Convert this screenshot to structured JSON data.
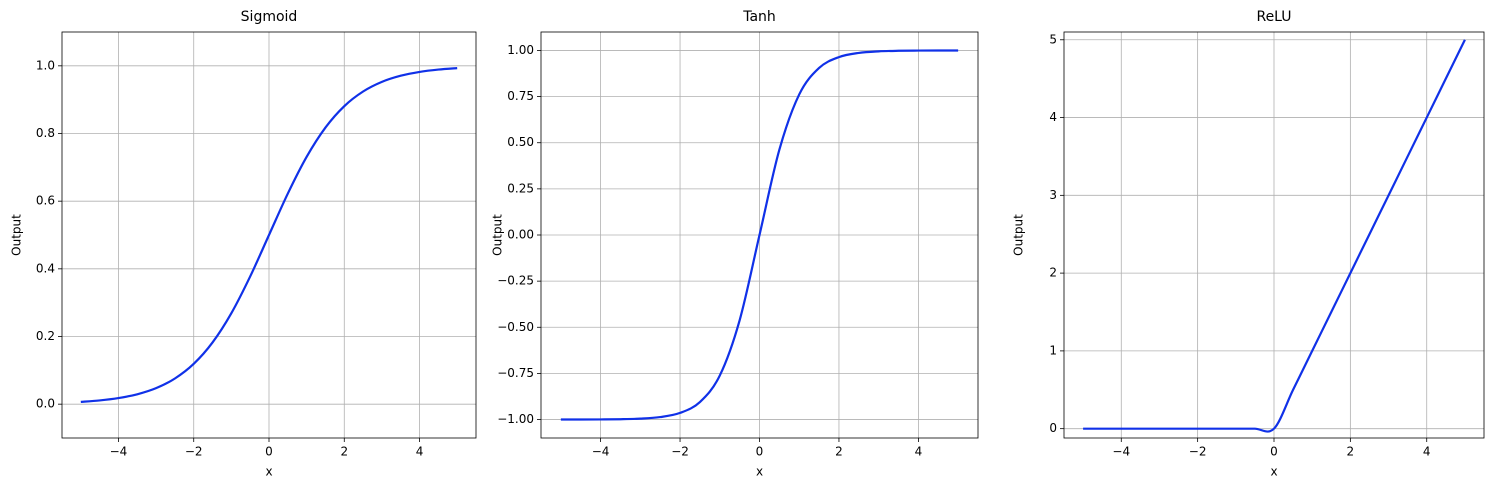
{
  "chart_data": [
    {
      "type": "line",
      "title": "Sigmoid",
      "x_label": "x",
      "y_label": "Output",
      "grid": true,
      "color": "#1031e8",
      "x": [
        -5,
        -4.5,
        -4,
        -3.5,
        -3,
        -2.5,
        -2,
        -1.5,
        -1,
        -0.5,
        0,
        0.5,
        1,
        1.5,
        2,
        2.5,
        3,
        3.5,
        4,
        4.5,
        5
      ],
      "values": [
        0.0067,
        0.011,
        0.018,
        0.0293,
        0.0474,
        0.0759,
        0.1192,
        0.1824,
        0.2689,
        0.3775,
        0.5,
        0.6225,
        0.7311,
        0.8176,
        0.8808,
        0.9241,
        0.9526,
        0.9707,
        0.982,
        0.989,
        0.9933
      ],
      "xlim": [
        -5.5,
        5.5
      ],
      "xticks": [
        {
          "value": -4,
          "label": "−4"
        },
        {
          "value": -2,
          "label": "−2"
        },
        0,
        2,
        4
      ],
      "ylim": [
        -0.1,
        1.1
      ],
      "yticks": [
        {
          "value": 0,
          "label": "0.0"
        },
        0.2,
        0.4,
        0.6,
        0.8,
        {
          "value": 1,
          "label": "1.0"
        }
      ]
    },
    {
      "type": "line",
      "title": "Tanh",
      "x_label": "x",
      "y_label": "Output",
      "grid": true,
      "color": "#1031e8",
      "x": [
        -5,
        -4.5,
        -4,
        -3.5,
        -3,
        -2.5,
        -2,
        -1.5,
        -1,
        -0.5,
        0,
        0.5,
        1,
        1.5,
        2,
        2.5,
        3,
        3.5,
        4,
        4.5,
        5
      ],
      "values": [
        -0.9999,
        -0.9998,
        -0.9993,
        -0.9982,
        -0.9951,
        -0.9866,
        -0.964,
        -0.9051,
        -0.7616,
        -0.4621,
        0,
        0.4621,
        0.7616,
        0.9051,
        0.964,
        0.9866,
        0.9951,
        0.9982,
        0.9993,
        0.9998,
        0.9999
      ],
      "xlim": [
        -5.5,
        5.5
      ],
      "xticks": [
        {
          "value": -4,
          "label": "−4"
        },
        {
          "value": -2,
          "label": "−2"
        },
        0,
        2,
        4
      ],
      "ylim": [
        -1.1,
        1.1
      ],
      "yticks": [
        {
          "value": -1,
          "label": "−1.00"
        },
        {
          "value": -0.75,
          "label": "−0.75"
        },
        {
          "value": -0.5,
          "label": "−0.50"
        },
        {
          "value": -0.25,
          "label": "−0.25"
        },
        {
          "value": 0,
          "label": "0.00"
        },
        0.25,
        {
          "value": 0.5,
          "label": "0.50"
        },
        0.75,
        {
          "value": 1,
          "label": "1.00"
        }
      ]
    },
    {
      "type": "line",
      "title": "ReLU",
      "x_label": "x",
      "y_label": "Output",
      "grid": true,
      "color": "#1031e8",
      "x": [
        -5,
        -4.5,
        -4,
        -3.5,
        -3,
        -2.5,
        -2,
        -1.5,
        -1,
        -0.5,
        0,
        0.5,
        1,
        1.5,
        2,
        2.5,
        3,
        3.5,
        4,
        4.5,
        5
      ],
      "values": [
        0,
        0,
        0,
        0,
        0,
        0,
        0,
        0,
        0,
        0,
        0,
        0.5,
        1,
        1.5,
        2,
        2.5,
        3,
        3.5,
        4,
        4.5,
        5
      ],
      "xlim": [
        -5.5,
        5.5
      ],
      "xticks": [
        {
          "value": -4,
          "label": "−4"
        },
        {
          "value": -2,
          "label": "−2"
        },
        0,
        2,
        4
      ],
      "ylim": [
        -0.12,
        5.1
      ],
      "yticks": [
        0,
        1,
        2,
        3,
        4,
        5
      ]
    }
  ]
}
